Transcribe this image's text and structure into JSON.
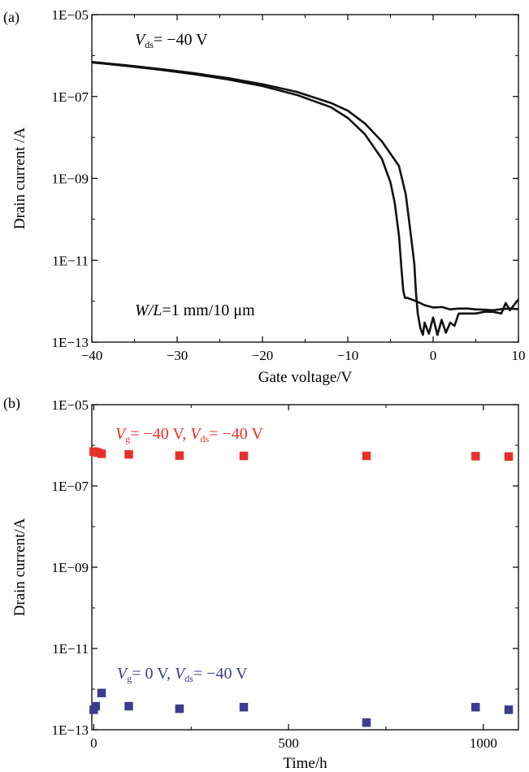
{
  "chart_data": [
    {
      "panel_label": "(a)",
      "type": "line",
      "xlabel": "Gate voltage/V",
      "ylabel": "Drain current /A",
      "xlim": [
        -40,
        10
      ],
      "ylim": [
        1e-13,
        1e-05
      ],
      "yscale": "log",
      "x_ticks": [
        -40,
        -30,
        -20,
        -10,
        0,
        10
      ],
      "x_tick_labels": [
        "−40",
        "−30",
        "−20",
        "−10",
        "0",
        "10"
      ],
      "y_ticks": [
        1e-05,
        1e-07,
        1e-09,
        1e-11,
        1e-13
      ],
      "y_tick_labels": [
        "1E−05",
        "1E−07",
        "1E−09",
        "1E−11",
        "1E−13"
      ],
      "grid": false,
      "annotations": {
        "vds": {
          "main": "V",
          "sub": "ds",
          "rest": "= −40 V"
        },
        "wl": {
          "main": "W/L",
          "rest": "=1 mm/10 μm"
        }
      },
      "series": [
        {
          "x": [
            -40,
            -36,
            -32,
            -28,
            -24,
            -20,
            -16,
            -12,
            -10,
            -8,
            -6,
            -5,
            -4.5,
            -4,
            -3.7,
            -3.5,
            -3.3,
            -3,
            -2,
            -1,
            0,
            1,
            2,
            3,
            4,
            5,
            6,
            7,
            8,
            9,
            10
          ],
          "y": [
            6.8e-07,
            5.6e-07,
            4.5e-07,
            3.5e-07,
            2.6e-07,
            1.8e-07,
            1.1e-07,
            5.5e-08,
            3e-08,
            1.2e-08,
            3e-09,
            8e-10,
            2.5e-10,
            4e-11,
            6e-12,
            1.8e-12,
            1.2e-12,
            1.2e-12,
            1e-12,
            8e-13,
            7e-13,
            7.2e-13,
            6.3e-13,
            6.6e-13,
            6.6e-13,
            6.3e-13,
            6.2e-13,
            6e-13,
            6.4e-13,
            6.6e-13,
            6.4e-13
          ]
        },
        {
          "x": [
            -40,
            -36,
            -32,
            -28,
            -24,
            -20,
            -16,
            -12,
            -10,
            -8,
            -6,
            -4,
            -3.2,
            -2.6,
            -2.2,
            -2,
            -1.8,
            -1.5,
            -1.2,
            -1,
            -0.5,
            0,
            0.5,
            1,
            1.5,
            2,
            2.5,
            3,
            4,
            5,
            6,
            7,
            8,
            8.5,
            9,
            10
          ],
          "y": [
            7e-07,
            5.8e-07,
            4.7e-07,
            3.7e-07,
            2.8e-07,
            2e-07,
            1.3e-07,
            7e-08,
            4.5e-08,
            2.2e-08,
            8e-09,
            2e-09,
            4e-10,
            4e-11,
            8e-12,
            1.5e-12,
            5e-13,
            2.2e-13,
            1.5e-13,
            3e-13,
            1.6e-13,
            4e-13,
            1.5e-13,
            3.5e-13,
            1.7e-13,
            3e-13,
            2.5e-13,
            5e-13,
            5e-13,
            5e-13,
            5.5e-13,
            5.5e-13,
            5e-13,
            9e-13,
            6e-13,
            1.1e-12
          ]
        }
      ]
    },
    {
      "panel_label": "(b)",
      "type": "scatter",
      "xlabel": "Time/h",
      "ylabel": "Drain current/A",
      "xlim": [
        -5,
        1090
      ],
      "ylim": [
        1e-13,
        1e-05
      ],
      "yscale": "log",
      "x_ticks": [
        0,
        500,
        1000
      ],
      "x_tick_labels": [
        "0",
        "500",
        "1000"
      ],
      "y_ticks": [
        1e-05,
        1e-07,
        1e-09,
        1e-11,
        1e-13
      ],
      "y_tick_labels": [
        "1E−05",
        "1E−07",
        "1E−09",
        "1E−11",
        "1E−13"
      ],
      "grid": false,
      "series": [
        {
          "label": {
            "g_main": "V",
            "g_sub": "g",
            "g_rest": "= −40 V, ",
            "ds_main": "V",
            "ds_sub": "ds",
            "ds_rest": "= −40 V"
          },
          "color": "#e8302b",
          "x": [
            0,
            5,
            10,
            20,
            90,
            220,
            385,
            700,
            980,
            1065
          ],
          "y": [
            7e-07,
            6.8e-07,
            6.6e-07,
            6.2e-07,
            6e-07,
            5.6e-07,
            5.5e-07,
            5.5e-07,
            5.4e-07,
            5.3e-07
          ]
        },
        {
          "label": {
            "g_main": "V",
            "g_sub": "g",
            "g_rest": "= 0 V, ",
            "ds_main": "V",
            "ds_sub": "ds",
            "ds_rest": "= −40 V"
          },
          "color": "#3b3d8f",
          "x": [
            0,
            5,
            20,
            90,
            220,
            385,
            700,
            980,
            1065
          ],
          "y": [
            3.1e-13,
            3.8e-13,
            8e-13,
            3.8e-13,
            3.3e-13,
            3.6e-13,
            1.5e-13,
            3.6e-13,
            3.1e-13
          ]
        }
      ]
    }
  ]
}
